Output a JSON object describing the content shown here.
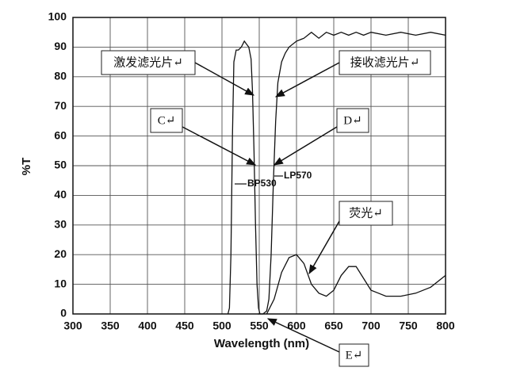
{
  "chart_data": {
    "type": "line",
    "xlabel": "Wavelength (nm)",
    "ylabel": "%T",
    "xlim": [
      300,
      800
    ],
    "ylim": [
      0,
      100
    ],
    "xticks": [
      300,
      350,
      400,
      450,
      500,
      550,
      600,
      650,
      700,
      750,
      800
    ],
    "yticks": [
      0,
      10,
      20,
      30,
      40,
      50,
      60,
      70,
      80,
      90,
      100
    ],
    "grid": true,
    "color": "#111111",
    "series": [
      {
        "name": "BP530",
        "color": "#111111",
        "x": [
          508,
          510,
          512,
          514,
          516,
          519,
          522,
          526,
          530,
          533,
          536,
          539,
          541,
          543,
          545,
          547,
          549,
          551
        ],
        "values": [
          0,
          2,
          20,
          60,
          85,
          89,
          89,
          90,
          92,
          91,
          90,
          86,
          75,
          55,
          30,
          10,
          2,
          0
        ]
      },
      {
        "name": "LP570",
        "color": "#111111",
        "x": [
          548,
          555,
          560,
          563,
          566,
          569,
          572,
          575,
          580,
          585,
          590,
          600,
          610,
          620,
          630,
          640,
          650,
          660,
          670,
          680,
          690,
          700,
          720,
          740,
          760,
          780,
          800
        ],
        "values": [
          0,
          0,
          1,
          5,
          20,
          45,
          65,
          78,
          85,
          88,
          90,
          92,
          93,
          95,
          93,
          95,
          94,
          95,
          94,
          95,
          94,
          95,
          94,
          95,
          94,
          95,
          94
        ]
      },
      {
        "color": "#111111",
        "x": [
          560,
          570,
          580,
          590,
          600,
          610,
          620,
          630,
          640,
          650,
          660,
          670,
          680,
          690,
          700,
          710,
          720,
          740,
          760,
          780,
          800
        ],
        "values": [
          0,
          5,
          14,
          19,
          20,
          17,
          10,
          7,
          6,
          8,
          13,
          16,
          16,
          12,
          8,
          7,
          6,
          6,
          7,
          9,
          13
        ]
      }
    ],
    "annotations": [
      "激发滤光片↵",
      "接收滤光片↵",
      "C↵",
      "D↵",
      "荧光↵",
      "E↵"
    ]
  }
}
